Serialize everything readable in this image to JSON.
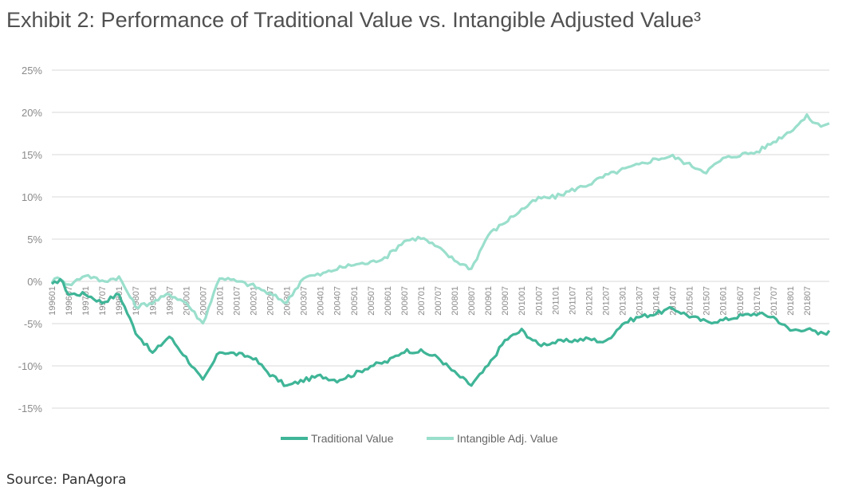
{
  "title": "Exhibit 2: Performance of Traditional Value vs. Intangible Adjusted Value³",
  "source": "Source: PanAgora",
  "chart_data": {
    "type": "line",
    "ylim": [
      -15,
      25
    ],
    "yticks": [
      "25%",
      "20%",
      "15%",
      "10%",
      "5%",
      "0%",
      "-5%",
      "-10%",
      "-15%"
    ],
    "ytick_values": [
      25,
      20,
      15,
      10,
      5,
      0,
      -5,
      -10,
      -15
    ],
    "grid": true,
    "legend_position": "bottom-center",
    "x_tick_labels": [
      "199601",
      "199607",
      "199701",
      "199707",
      "199801",
      "199807",
      "199901",
      "199907",
      "200001",
      "200007",
      "200101",
      "200107",
      "200201",
      "200207",
      "200301",
      "200307",
      "200401",
      "200407",
      "200501",
      "200507",
      "200601",
      "200607",
      "200701",
      "200707",
      "200801",
      "200807",
      "200901",
      "200907",
      "201001",
      "201007",
      "201101",
      "201107",
      "201201",
      "201207",
      "201301",
      "201307",
      "201401",
      "201407",
      "201501",
      "201507",
      "201601",
      "201607",
      "201701",
      "201707",
      "201801",
      "201807"
    ],
    "x_tick_index": [
      0,
      6,
      12,
      18,
      24,
      30,
      36,
      42,
      48,
      54,
      60,
      66,
      72,
      78,
      84,
      90,
      96,
      102,
      108,
      114,
      120,
      126,
      132,
      138,
      144,
      150,
      156,
      162,
      168,
      174,
      180,
      186,
      192,
      198,
      204,
      210,
      216,
      222,
      228,
      234,
      240,
      246,
      252,
      258,
      264,
      270
    ],
    "n_points": 279,
    "series": [
      {
        "name": "Traditional Value",
        "color": "#3fb597",
        "knots": [
          [
            0,
            -0.5
          ],
          [
            3,
            0.3
          ],
          [
            6,
            -1.5
          ],
          [
            12,
            -1.5
          ],
          [
            18,
            -2.5
          ],
          [
            24,
            -1.5
          ],
          [
            30,
            -6
          ],
          [
            36,
            -8.5
          ],
          [
            42,
            -6.5
          ],
          [
            48,
            -9
          ],
          [
            54,
            -11.8
          ],
          [
            60,
            -8.3
          ],
          [
            66,
            -8.6
          ],
          [
            72,
            -9
          ],
          [
            78,
            -11
          ],
          [
            84,
            -12.4
          ],
          [
            90,
            -11.7
          ],
          [
            96,
            -11.2
          ],
          [
            102,
            -11.7
          ],
          [
            108,
            -11
          ],
          [
            114,
            -10
          ],
          [
            120,
            -9.5
          ],
          [
            126,
            -8.2
          ],
          [
            132,
            -8.3
          ],
          [
            138,
            -9
          ],
          [
            144,
            -10.8
          ],
          [
            150,
            -12.3
          ],
          [
            156,
            -10
          ],
          [
            162,
            -7
          ],
          [
            168,
            -5.8
          ],
          [
            174,
            -7.5
          ],
          [
            180,
            -7.2
          ],
          [
            186,
            -7
          ],
          [
            192,
            -6.8
          ],
          [
            198,
            -7.2
          ],
          [
            204,
            -5
          ],
          [
            210,
            -4.2
          ],
          [
            216,
            -3.8
          ],
          [
            222,
            -3.2
          ],
          [
            228,
            -4.1
          ],
          [
            234,
            -4.8
          ],
          [
            240,
            -4.6
          ],
          [
            246,
            -4.1
          ],
          [
            252,
            -3.8
          ],
          [
            258,
            -4.2
          ],
          [
            264,
            -5.8
          ],
          [
            270,
            -5.6
          ],
          [
            274,
            -6.2
          ],
          [
            278,
            -6
          ]
        ]
      },
      {
        "name": "Intangible Adj. Value",
        "color": "#9adfcc",
        "knots": [
          [
            0,
            0
          ],
          [
            3,
            0.5
          ],
          [
            6,
            -0.5
          ],
          [
            12,
            0.8
          ],
          [
            18,
            0
          ],
          [
            24,
            0.5
          ],
          [
            30,
            -3
          ],
          [
            36,
            -2.5
          ],
          [
            42,
            -1.5
          ],
          [
            48,
            -2.5
          ],
          [
            54,
            -5
          ],
          [
            60,
            0.5
          ],
          [
            66,
            0
          ],
          [
            72,
            -0.5
          ],
          [
            78,
            -1.5
          ],
          [
            84,
            -2.5
          ],
          [
            90,
            0.5
          ],
          [
            96,
            0.8
          ],
          [
            102,
            1.5
          ],
          [
            108,
            2
          ],
          [
            114,
            2.2
          ],
          [
            120,
            3
          ],
          [
            126,
            4.8
          ],
          [
            132,
            5.2
          ],
          [
            138,
            4
          ],
          [
            144,
            2.5
          ],
          [
            150,
            1.5
          ],
          [
            156,
            5.5
          ],
          [
            162,
            7
          ],
          [
            168,
            8.5
          ],
          [
            174,
            9.8
          ],
          [
            180,
            10
          ],
          [
            186,
            10.8
          ],
          [
            192,
            11.5
          ],
          [
            198,
            12.5
          ],
          [
            204,
            13.2
          ],
          [
            210,
            13.8
          ],
          [
            216,
            14.5
          ],
          [
            222,
            14.8
          ],
          [
            228,
            13.8
          ],
          [
            234,
            13
          ],
          [
            240,
            14.5
          ],
          [
            246,
            15
          ],
          [
            252,
            15.3
          ],
          [
            258,
            16.5
          ],
          [
            264,
            17.8
          ],
          [
            270,
            19.5
          ],
          [
            274,
            18.5
          ],
          [
            278,
            18.7
          ]
        ]
      }
    ]
  }
}
